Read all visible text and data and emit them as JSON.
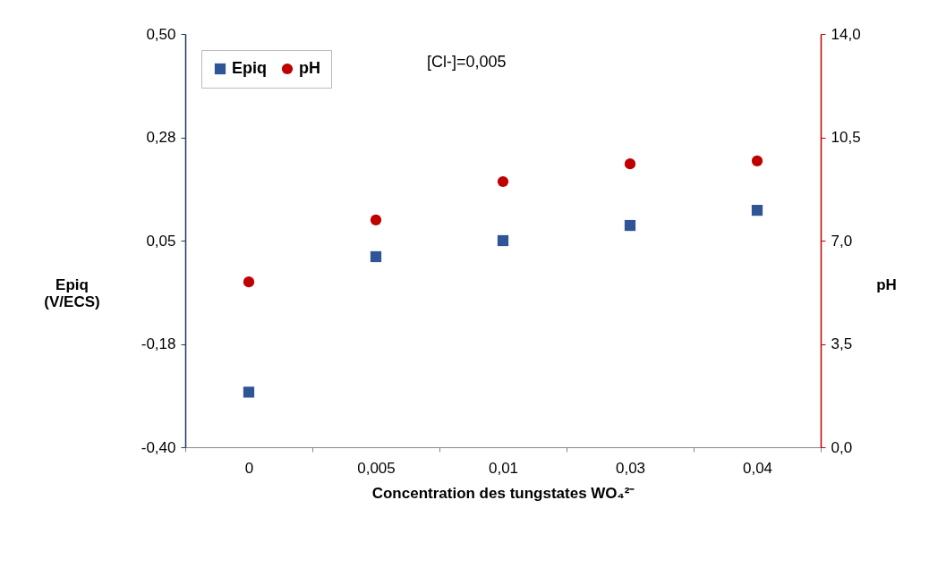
{
  "chart_data": {
    "type": "scatter",
    "xlabel": "Concentration des tungstates WO₄²⁻",
    "ylabel": "Epiq (V/ECS)",
    "y2label": "pH",
    "categories": [
      "0",
      "0,005",
      "0,01",
      "0,03",
      "0,04"
    ],
    "series": [
      {
        "name": "Epiq",
        "color": "#2f5597",
        "marker": "square",
        "values": [
          -0.28,
          0.015,
          0.05,
          0.083,
          0.116
        ]
      },
      {
        "name": "pH",
        "color": "#c00000",
        "marker": "circle",
        "axis": "y2",
        "values": [
          5.6,
          7.7,
          9.0,
          9.6,
          9.7
        ]
      }
    ],
    "ylim": [
      -0.4,
      0.5
    ],
    "yticks": [
      {
        "value": -0.4,
        "label": "-0,40"
      },
      {
        "value": -0.175,
        "label": "-0,18"
      },
      {
        "value": 0.05,
        "label": "0,05"
      },
      {
        "value": 0.275,
        "label": "0,28"
      },
      {
        "value": 0.5,
        "label": "0,50"
      }
    ],
    "y2lim": [
      0,
      14
    ],
    "y2ticks": [
      {
        "value": 0,
        "label": "0,0"
      },
      {
        "value": 3.5,
        "label": "3,5"
      },
      {
        "value": 7,
        "label": "7,0"
      },
      {
        "value": 10.5,
        "label": "10,5"
      },
      {
        "value": 14,
        "label": "14,0"
      }
    ],
    "annotations": [
      "[Cl-]=0,005"
    ],
    "legend": "top left",
    "grid": false
  }
}
